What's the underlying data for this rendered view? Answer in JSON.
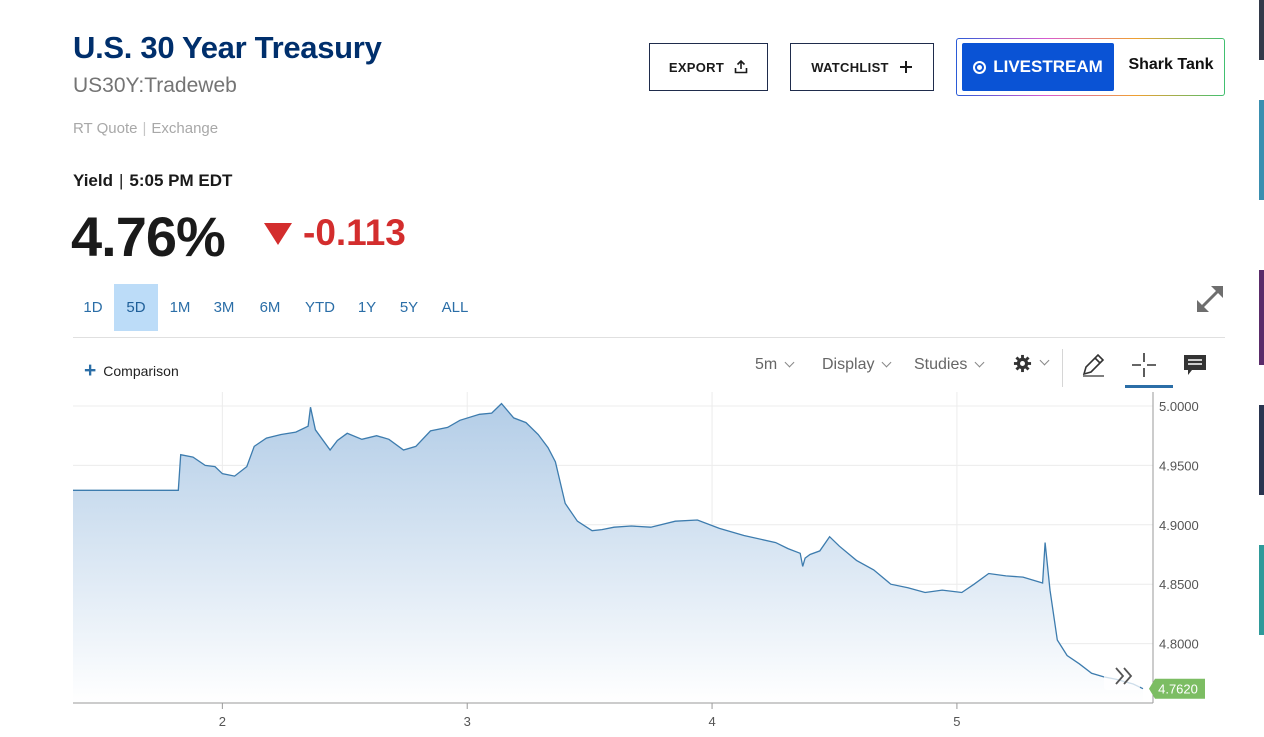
{
  "header": {
    "title": "U.S. 30 Year Treasury",
    "symbol": "US30Y:Tradeweb",
    "quote_type": "RT Quote",
    "quote_sep": "|",
    "quote_exchange": "Exchange",
    "yield_label": "Yield",
    "yield_sep": "|",
    "yield_time": "5:05 PM EDT",
    "last": "4.76%",
    "change": "-0.113",
    "change_color": "#d32d2d"
  },
  "buttons": {
    "export": "EXPORT",
    "watchlist": "WATCHLIST",
    "livestream": "LIVESTREAM",
    "livestream_show": "Shark Tank"
  },
  "ranges": {
    "items": [
      "1D",
      "5D",
      "1M",
      "3M",
      "6M",
      "YTD",
      "1Y",
      "5Y",
      "ALL"
    ],
    "active": "5D"
  },
  "toolbar": {
    "comparison": "Comparison",
    "interval": "5m",
    "display": "Display",
    "studies": "Studies"
  },
  "chart_data": {
    "type": "area",
    "x_ticks": [
      "2",
      "3",
      "4",
      "5"
    ],
    "y_ticks": [
      "4.8000",
      "4.8500",
      "4.9000",
      "4.9500",
      "5.0000"
    ],
    "ylim": [
      4.75,
      5.0
    ],
    "current_value_label": "4.7620",
    "current_value": 4.762,
    "line_color": "#3d7cae",
    "fill_color_top": "#b3cde7",
    "fill_color_bottom": "#ffffff",
    "current_label_color": "#7cbd63",
    "grid": true,
    "series": [
      {
        "values": [
          [
            1.39,
            4.929
          ],
          [
            1.82,
            4.929
          ],
          [
            1.83,
            4.959
          ],
          [
            1.88,
            4.957
          ],
          [
            1.93,
            4.95
          ],
          [
            1.97,
            4.949
          ],
          [
            2.0,
            4.943
          ],
          [
            2.05,
            4.941
          ],
          [
            2.1,
            4.949
          ],
          [
            2.13,
            4.966
          ],
          [
            2.18,
            4.973
          ],
          [
            2.24,
            4.976
          ],
          [
            2.3,
            4.978
          ],
          [
            2.35,
            4.983
          ],
          [
            2.36,
            4.999
          ],
          [
            2.38,
            4.98
          ],
          [
            2.44,
            4.963
          ],
          [
            2.47,
            4.971
          ],
          [
            2.51,
            4.977
          ],
          [
            2.57,
            4.972
          ],
          [
            2.63,
            4.975
          ],
          [
            2.68,
            4.972
          ],
          [
            2.74,
            4.963
          ],
          [
            2.79,
            4.966
          ],
          [
            2.85,
            4.979
          ],
          [
            2.92,
            4.982
          ],
          [
            2.97,
            4.988
          ],
          [
            3.05,
            4.993
          ],
          [
            3.1,
            4.994
          ],
          [
            3.14,
            5.002
          ],
          [
            3.19,
            4.99
          ],
          [
            3.24,
            4.986
          ],
          [
            3.29,
            4.976
          ],
          [
            3.33,
            4.965
          ],
          [
            3.36,
            4.953
          ],
          [
            3.4,
            4.918
          ],
          [
            3.45,
            4.903
          ],
          [
            3.51,
            4.895
          ],
          [
            3.55,
            4.896
          ],
          [
            3.6,
            4.898
          ],
          [
            3.67,
            4.899
          ],
          [
            3.75,
            4.898
          ],
          [
            3.85,
            4.903
          ],
          [
            3.94,
            4.904
          ],
          [
            4.03,
            4.897
          ],
          [
            4.13,
            4.891
          ],
          [
            4.26,
            4.885
          ],
          [
            4.31,
            4.88
          ],
          [
            4.36,
            4.876
          ],
          [
            4.37,
            4.865
          ],
          [
            4.38,
            4.872
          ],
          [
            4.4,
            4.875
          ],
          [
            4.44,
            4.878
          ],
          [
            4.48,
            4.89
          ],
          [
            4.52,
            4.882
          ],
          [
            4.59,
            4.87
          ],
          [
            4.66,
            4.862
          ],
          [
            4.73,
            4.85
          ],
          [
            4.8,
            4.847
          ],
          [
            4.87,
            4.843
          ],
          [
            4.94,
            4.845
          ],
          [
            5.02,
            4.843
          ],
          [
            5.07,
            4.85
          ],
          [
            5.13,
            4.859
          ],
          [
            5.2,
            4.857
          ],
          [
            5.27,
            4.856
          ],
          [
            5.35,
            4.851
          ],
          [
            5.36,
            4.885
          ],
          [
            5.38,
            4.845
          ],
          [
            5.41,
            4.803
          ],
          [
            5.45,
            4.79
          ],
          [
            5.5,
            4.783
          ],
          [
            5.55,
            4.775
          ],
          [
            5.6,
            4.772
          ],
          [
            5.65,
            4.77
          ],
          [
            5.72,
            4.766
          ],
          [
            5.76,
            4.762
          ]
        ]
      }
    ]
  },
  "icons": {
    "export": "upload-icon",
    "watchlist": "plus-icon",
    "expand": "expand-arrows-icon",
    "settings": "gear-icon",
    "draw": "pencil-icon",
    "crosshair": "crosshair-icon",
    "comments": "comment-icon",
    "scroll": "double-chevron-right-icon"
  }
}
